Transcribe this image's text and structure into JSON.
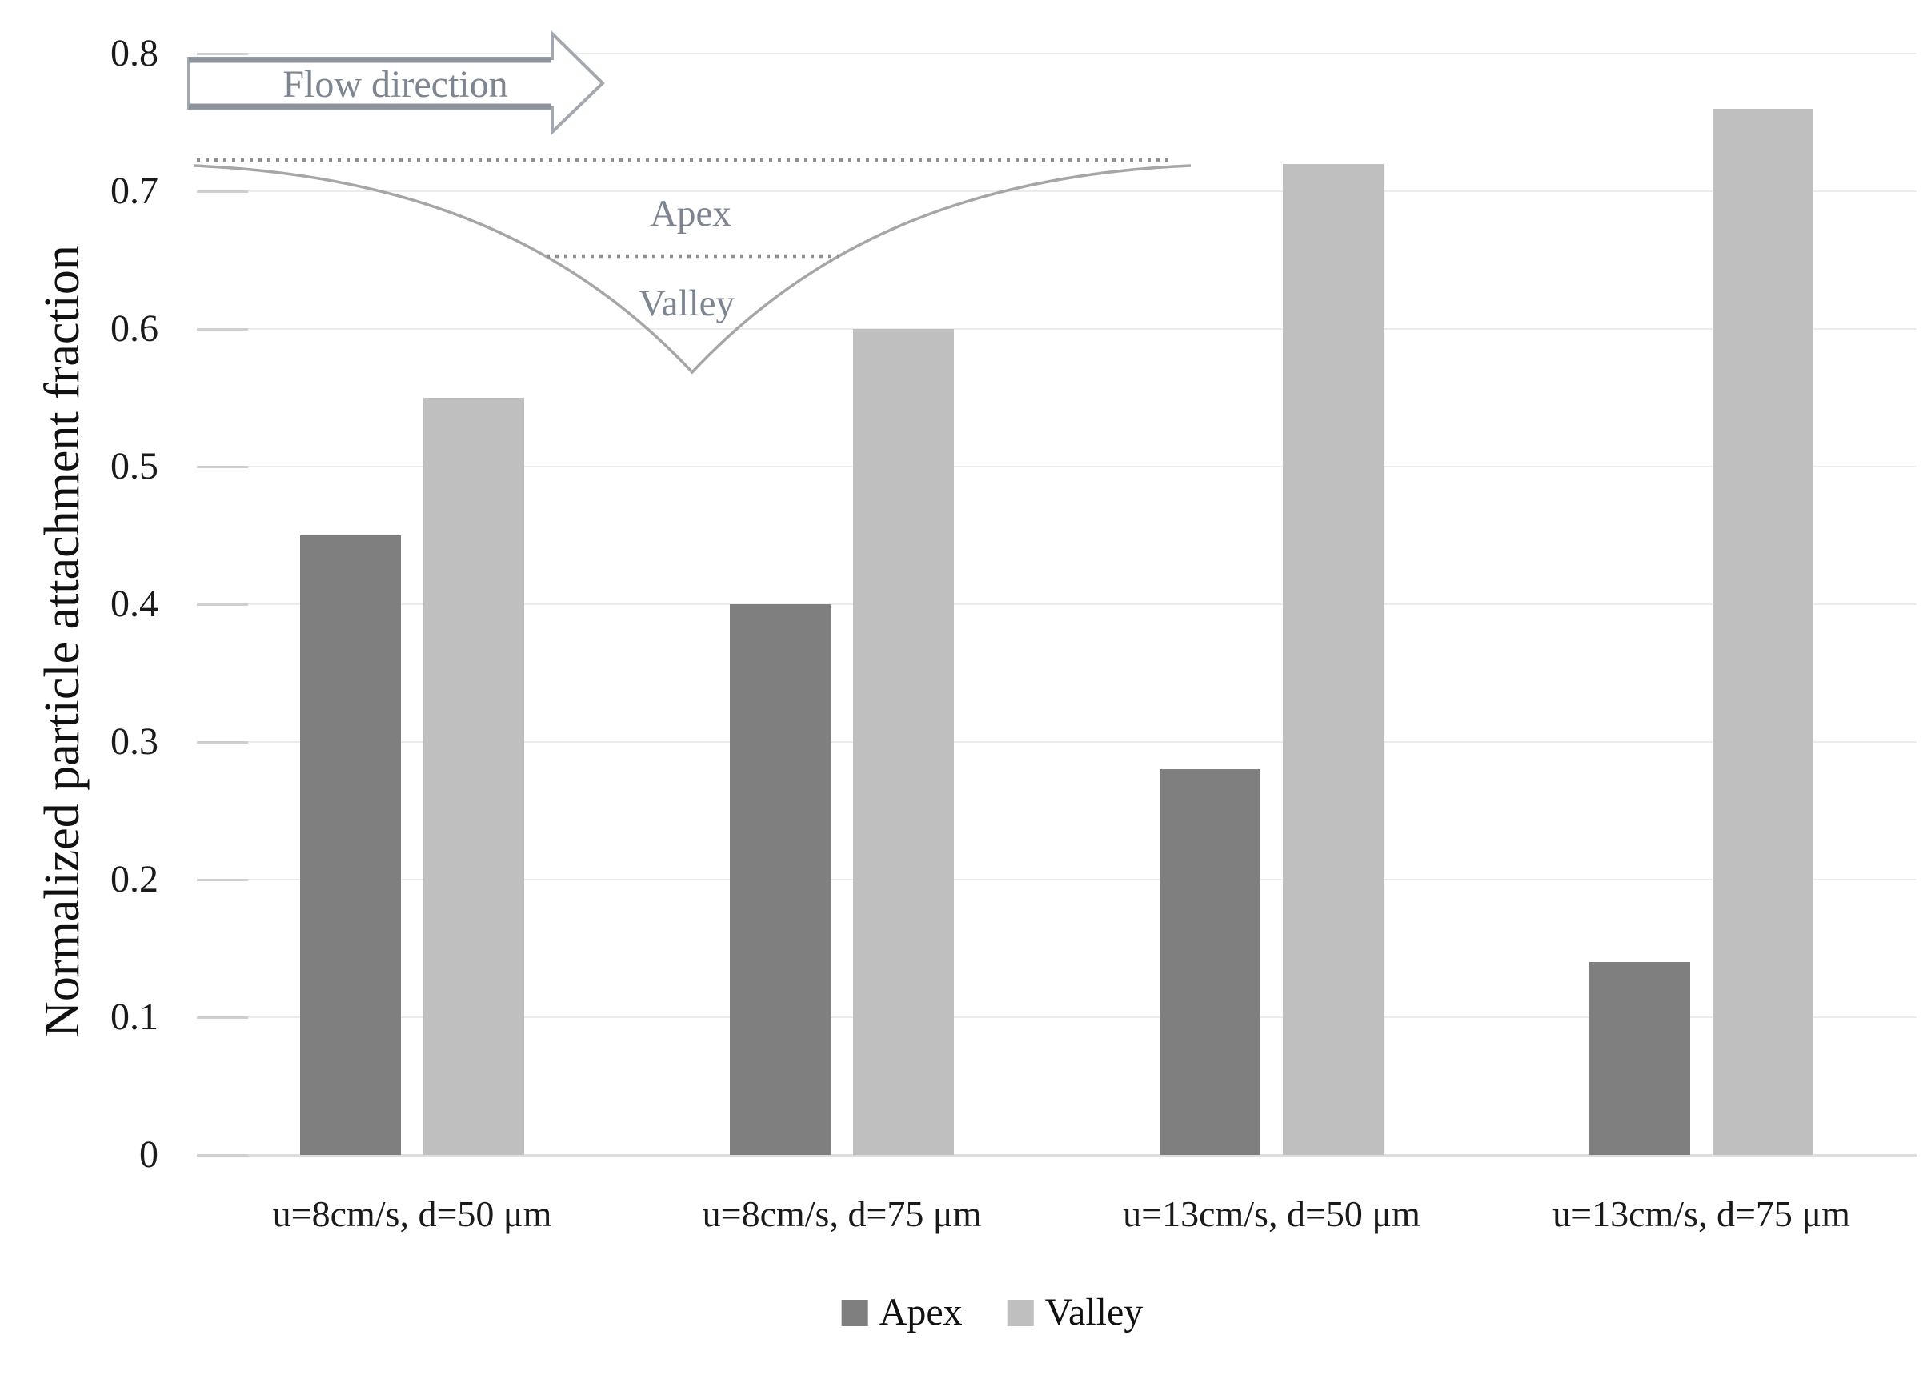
{
  "chart_data": {
    "type": "bar",
    "title": "",
    "categories": [
      "u=8cm/s, d=50 μm",
      "u=8cm/s, d=75 μm",
      "u=13cm/s, d=50 μm",
      "u=13cm/s, d=75 μm"
    ],
    "series": [
      {
        "name": "Apex",
        "color": "#7f7f7f",
        "values": [
          0.45,
          0.4,
          0.28,
          0.14
        ]
      },
      {
        "name": "Valley",
        "color": "#bfbfbf",
        "values": [
          0.55,
          0.6,
          0.72,
          0.76
        ]
      }
    ],
    "xlabel": "",
    "ylabel": "Normalized particle attachment fraction",
    "ylim": [
      0,
      0.8
    ],
    "yticks": [
      0,
      0.1,
      0.2,
      0.3,
      0.4,
      0.5,
      0.6,
      0.7,
      0.8
    ],
    "ytick_labels": [
      "0",
      "0.1",
      "0.2",
      "0.3",
      "0.4",
      "0.5",
      "0.6",
      "0.7",
      "0.8"
    ],
    "grid": true,
    "legend_position": "bottom"
  },
  "inset": {
    "flow_label": "Flow direction",
    "apex_label": "Apex",
    "valley_label": "Valley",
    "line_color": "#a6a6a6",
    "dotted_color": "#8f8f8f",
    "text_color": "#7d8591"
  }
}
